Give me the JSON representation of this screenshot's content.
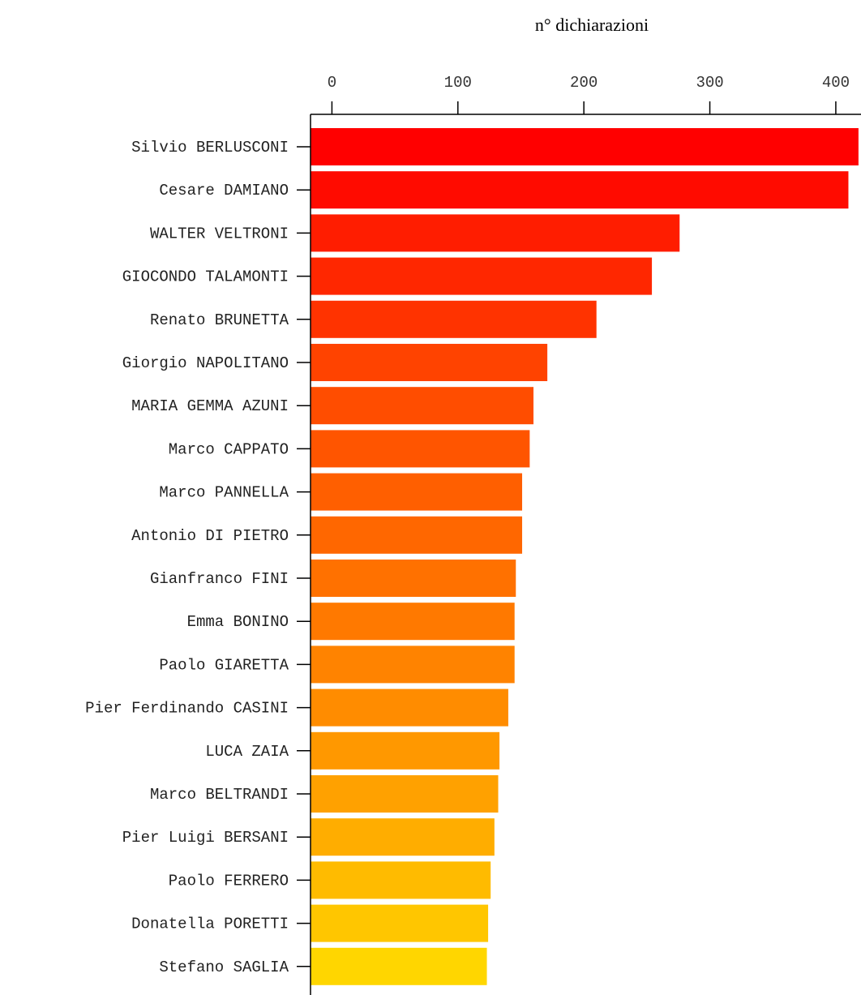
{
  "chart_data": {
    "type": "bar",
    "orientation": "horizontal",
    "xlabel": "n° dichiarazioni",
    "xlabel_position": "top",
    "xlim": [
      -17,
      420
    ],
    "xticks": [
      0,
      100,
      200,
      300,
      400
    ],
    "categories": [
      "Silvio BERLUSCONI",
      "Cesare DAMIANO",
      "WALTER VELTRONI",
      "GIOCONDO TALAMONTI",
      "Renato BRUNETTA",
      "Giorgio NAPOLITANO",
      "MARIA GEMMA AZUNI",
      "Marco CAPPATO",
      "Marco PANNELLA",
      "Antonio DI PIETRO",
      "Gianfranco FINI",
      "Emma BONINO",
      "Paolo GIARETTA",
      "Pier Ferdinando CASINI",
      "LUCA ZAIA",
      "Marco BELTRANDI",
      "Pier Luigi BERSANI",
      "Paolo FERRERO",
      "Donatella PORETTI",
      "Stefano SAGLIA"
    ],
    "values": [
      418,
      410,
      276,
      254,
      210,
      171,
      160,
      157,
      151,
      151,
      146,
      145,
      145,
      140,
      133,
      132,
      129,
      126,
      124,
      123
    ],
    "colors": [
      "#ff0000",
      "#ff0b00",
      "#ff1d00",
      "#ff2700",
      "#ff3300",
      "#ff4300",
      "#ff4d00",
      "#ff5500",
      "#ff5f00",
      "#ff6700",
      "#ff7100",
      "#ff7900",
      "#ff8300",
      "#ff8c00",
      "#ff9800",
      "#ffa100",
      "#ffad00",
      "#ffbb00",
      "#ffc600",
      "#ffd600"
    ],
    "grid": false,
    "legend": false
  }
}
